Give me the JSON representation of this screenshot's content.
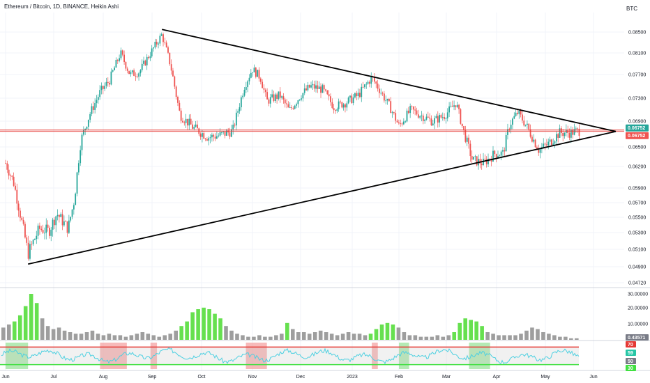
{
  "header": {
    "title": "Ethereum / Bitcoin, 1D, BINANCE, Heikin Ashi",
    "currency": "BTC"
  },
  "colors": {
    "up": "#26a69a",
    "down": "#ef5350",
    "hline": "#e53935",
    "trendline": "#000000",
    "volume_up": "#66e04f",
    "volume_down": "#9e9e9e",
    "rsi_line": "#4dd0e1",
    "rsi_overbought": "#e53935",
    "rsi_oversold": "#40e040"
  },
  "chart_data": [
    {
      "type": "candlestick",
      "title": "Ethereum / Bitcoin, 1D, BINANCE, Heikin Ashi",
      "y_axis_label": "BTC",
      "ylim": [
        0.0465,
        0.0872
      ],
      "y_ticks": [
        "0.08500",
        "0.08100",
        "0.07700",
        "0.07300",
        "0.06900",
        "0.06500",
        "0.06200",
        "0.05900",
        "0.05700",
        "0.05500",
        "0.05300",
        "0.05100",
        "0.04900",
        "0.04720"
      ],
      "x_ticks": [
        "Jun",
        "Jul",
        "Aug",
        "Sep",
        "Oct",
        "Nov",
        "Dec",
        "2023",
        "Feb",
        "Mar",
        "Apr",
        "May",
        "Jun"
      ],
      "price_labels": {
        "last": "0.06752",
        "line": "0.06752"
      },
      "horizontal_line": 0.06752,
      "series": [
        {
          "name": "price",
          "points": [
            {
              "x": "Jun 1",
              "y": 0.0625
            },
            {
              "x": "Jun 6",
              "y": 0.0598
            },
            {
              "x": "Jun 11",
              "y": 0.0545
            },
            {
              "x": "Jun 15",
              "y": 0.0505
            },
            {
              "x": "Jun 22",
              "y": 0.0535
            },
            {
              "x": "Jun 28",
              "y": 0.0532
            },
            {
              "x": "Jul 3",
              "y": 0.0555
            },
            {
              "x": "Jul 10",
              "y": 0.0535
            },
            {
              "x": "Jul 14",
              "y": 0.0575
            },
            {
              "x": "Jul 18",
              "y": 0.066
            },
            {
              "x": "Jul 24",
              "y": 0.0705
            },
            {
              "x": "Jul 30",
              "y": 0.074
            },
            {
              "x": "Aug 5",
              "y": 0.076
            },
            {
              "x": "Aug 12",
              "y": 0.081
            },
            {
              "x": "Aug 18",
              "y": 0.077
            },
            {
              "x": "Aug 24",
              "y": 0.0775
            },
            {
              "x": "Aug 30",
              "y": 0.0805
            },
            {
              "x": "Sep 7",
              "y": 0.0845
            },
            {
              "x": "Sep 12",
              "y": 0.079
            },
            {
              "x": "Sep 18",
              "y": 0.07
            },
            {
              "x": "Sep 26",
              "y": 0.068
            },
            {
              "x": "Oct 5",
              "y": 0.0665
            },
            {
              "x": "Oct 12",
              "y": 0.0668
            },
            {
              "x": "Oct 20",
              "y": 0.0675
            },
            {
              "x": "Oct 27",
              "y": 0.075
            },
            {
              "x": "Nov 1",
              "y": 0.078
            },
            {
              "x": "Nov 6",
              "y": 0.0765
            },
            {
              "x": "Nov 10",
              "y": 0.0725
            },
            {
              "x": "Nov 18",
              "y": 0.0735
            },
            {
              "x": "Nov 24",
              "y": 0.0708
            },
            {
              "x": "Dec 1",
              "y": 0.0735
            },
            {
              "x": "Dec 7",
              "y": 0.075
            },
            {
              "x": "Dec 14",
              "y": 0.0745
            },
            {
              "x": "Dec 21",
              "y": 0.0715
            },
            {
              "x": "Dec 28",
              "y": 0.0722
            },
            {
              "x": "Jan 5",
              "y": 0.0735
            },
            {
              "x": "Jan 14",
              "y": 0.0765
            },
            {
              "x": "Jan 19",
              "y": 0.0745
            },
            {
              "x": "Jan 26",
              "y": 0.0715
            },
            {
              "x": "Feb 1",
              "y": 0.0682
            },
            {
              "x": "Feb 8",
              "y": 0.071
            },
            {
              "x": "Feb 14",
              "y": 0.07
            },
            {
              "x": "Feb 21",
              "y": 0.069
            },
            {
              "x": "Feb 28",
              "y": 0.07
            },
            {
              "x": "Mar 7",
              "y": 0.0722
            },
            {
              "x": "Mar 11",
              "y": 0.068
            },
            {
              "x": "Mar 17",
              "y": 0.063
            },
            {
              "x": "Mar 24",
              "y": 0.0625
            },
            {
              "x": "Mar 31",
              "y": 0.064
            },
            {
              "x": "Apr 5",
              "y": 0.064
            },
            {
              "x": "Apr 9",
              "y": 0.0685
            },
            {
              "x": "Apr 14",
              "y": 0.0705
            },
            {
              "x": "Apr 20",
              "y": 0.068
            },
            {
              "x": "Apr 27",
              "y": 0.0645
            },
            {
              "x": "May 3",
              "y": 0.0655
            },
            {
              "x": "May 10",
              "y": 0.0672
            },
            {
              "x": "May 17",
              "y": 0.0672
            },
            {
              "x": "May 23",
              "y": 0.0675
            }
          ]
        }
      ],
      "trendlines": [
        {
          "name": "upper",
          "from": {
            "x": "Sep 7",
            "y": 0.0855
          },
          "to": {
            "x": "Jun 1 2023",
            "y": 0.0674
          }
        },
        {
          "name": "lower",
          "from": {
            "x": "Jun 15",
            "y": 0.0493
          },
          "to": {
            "x": "Jun 1 2023",
            "y": 0.0674
          }
        }
      ]
    },
    {
      "type": "bar",
      "name": "volume",
      "ylim": [
        0,
        30
      ],
      "y_ticks": [
        "30.00000",
        "20.00000",
        "10.00000"
      ],
      "last_label": "0.43571",
      "values": [
        8,
        10,
        12,
        16,
        22,
        30,
        24,
        14,
        9,
        7,
        8,
        6,
        5,
        4,
        4,
        5,
        6,
        4,
        3,
        4,
        3,
        3,
        2,
        3,
        4,
        5,
        4,
        3,
        2,
        3,
        4,
        6,
        9,
        12,
        18,
        20,
        21,
        20,
        17,
        14,
        9,
        6,
        4,
        3,
        2,
        2,
        3,
        2,
        2,
        3,
        4,
        11,
        7,
        5,
        5,
        4,
        5,
        6,
        5,
        4,
        3,
        4,
        5,
        4,
        4,
        3,
        4,
        7,
        10,
        11,
        10,
        8,
        5,
        3,
        3,
        2,
        2,
        2,
        3,
        2,
        3,
        5,
        11,
        14,
        13,
        12,
        9,
        5,
        4,
        3,
        3,
        3,
        3,
        4,
        6,
        8,
        7,
        5,
        4,
        3,
        2,
        2,
        1,
        1
      ]
    },
    {
      "type": "line",
      "name": "rsi",
      "ylim": [
        20,
        80
      ],
      "y_ticks": [
        "70",
        "59",
        "50",
        "30"
      ],
      "levels": {
        "overbought": 70,
        "oversold": 30
      },
      "highlight_overbought_x": [
        "Jul 30-Aug 16",
        "Aug 31-Sep 4",
        "Oct 28-Nov 10",
        "Jan 14-Jan 18"
      ],
      "highlight_oversold_x": [
        "Jun 1-Jun 15",
        "Feb 1-Feb 7",
        "Mar 15-Mar 28"
      ]
    }
  ]
}
